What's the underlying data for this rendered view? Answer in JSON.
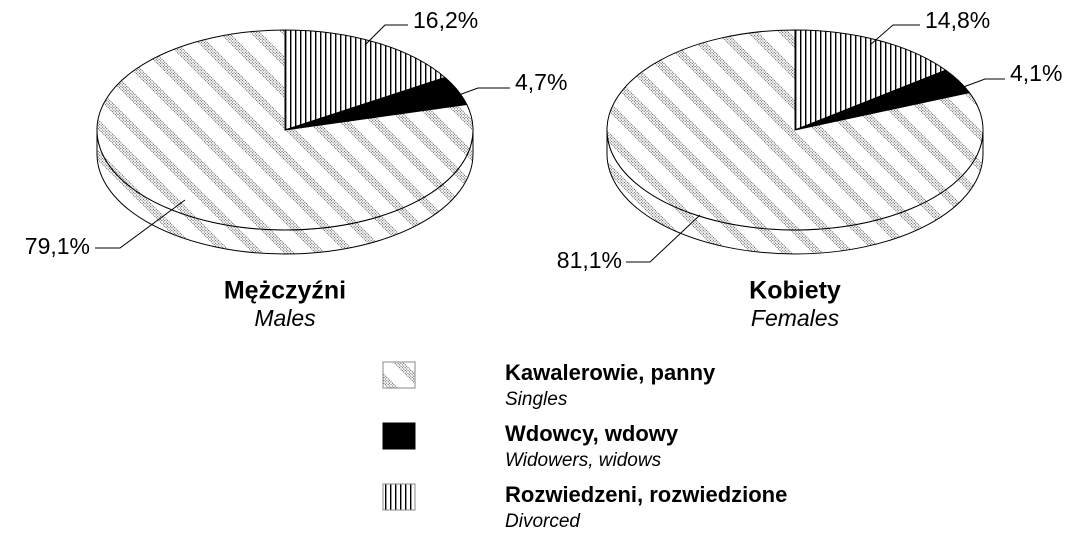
{
  "chart_data": [
    {
      "type": "pie",
      "title": "Mężczyźni",
      "subtitle": "Males",
      "values": [
        79.1,
        4.7,
        16.2
      ],
      "value_labels": [
        "79,1%",
        "4,7%",
        "16,2%"
      ]
    },
    {
      "type": "pie",
      "title": "Kobiety",
      "subtitle": "Females",
      "values": [
        81.1,
        4.1,
        14.8
      ],
      "value_labels": [
        "81,1%",
        "4,1%",
        "14,8%"
      ]
    }
  ],
  "legend": {
    "items": [
      {
        "name": "Kawalerowie, panny",
        "translation": "Singles",
        "pattern": "hatch"
      },
      {
        "name": "Wdowcy, wdowy",
        "translation": "Widowers, widows",
        "pattern": "solid"
      },
      {
        "name": "Rozwiedzeni, rozwiedzione",
        "translation": "Divorced",
        "pattern": "vertical"
      }
    ]
  }
}
